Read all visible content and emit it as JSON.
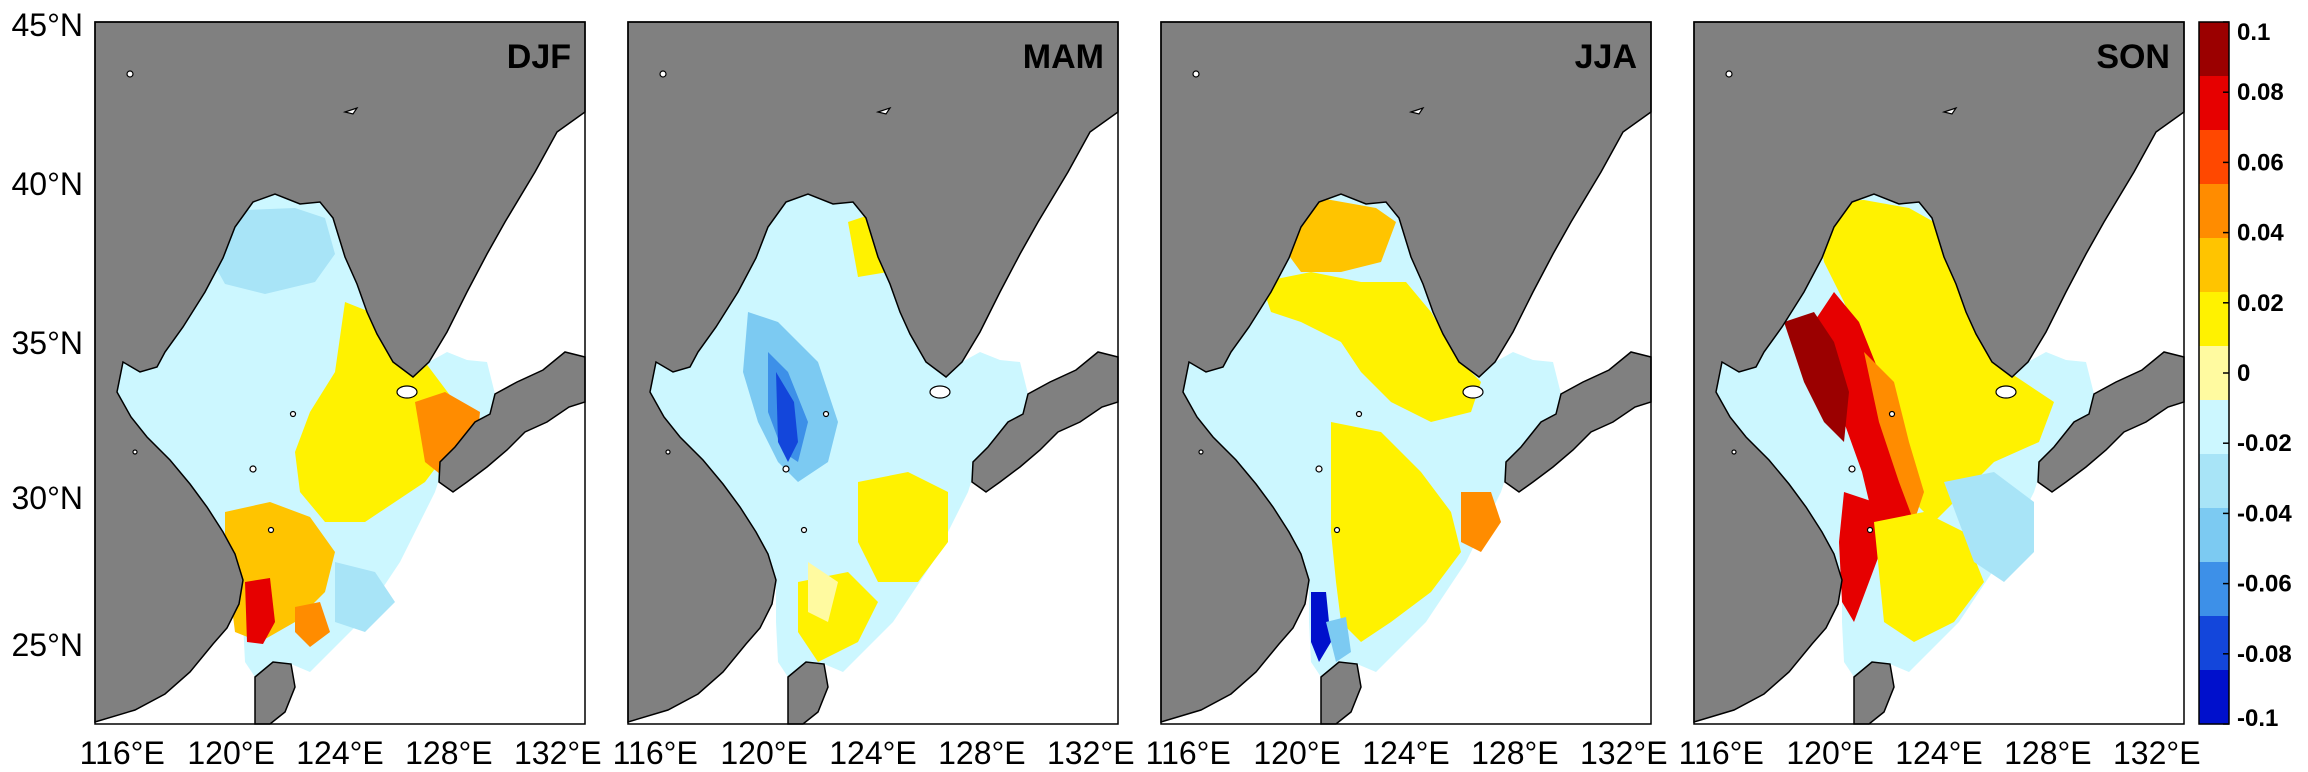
{
  "figure": {
    "panels": [
      {
        "label": "DJF",
        "pattern": "djf"
      },
      {
        "label": "MAM",
        "pattern": "mam"
      },
      {
        "label": "JJA",
        "pattern": "jja"
      },
      {
        "label": "SON",
        "pattern": "son"
      }
    ],
    "lat_ticks": [
      "45°N",
      "40°N",
      "35°N",
      "30°N",
      "25°N"
    ],
    "lon_ticks": [
      "116°E",
      "120°E",
      "124°E",
      "128°E",
      "132°E"
    ],
    "lat_range": [
      22,
      45
    ],
    "lon_range": [
      115,
      133
    ],
    "land_color": "#808080",
    "colorbar": {
      "range": [
        -0.1,
        0.1
      ],
      "tick_labels": [
        "0.1",
        "0.08",
        "0.06",
        "0.04",
        "0.02",
        "0",
        "-0.02",
        "-0.04",
        "-0.06",
        "-0.08",
        "-0.1"
      ],
      "colors": [
        "#9b0000",
        "#e60000",
        "#ff4800",
        "#ff8c00",
        "#ffc400",
        "#fff200",
        "#fffaa0",
        "#ccf7ff",
        "#a8e4f7",
        "#7ccaf2",
        "#3d90e8",
        "#1346db",
        "#0010cc"
      ]
    }
  }
}
